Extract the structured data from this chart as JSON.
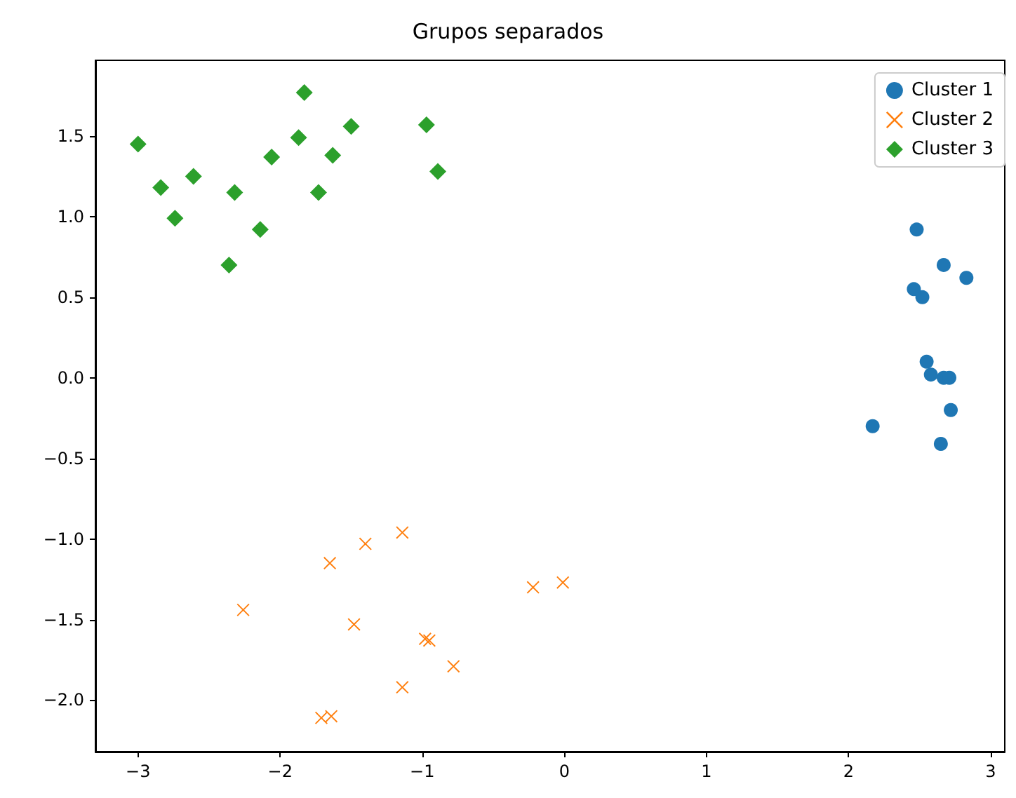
{
  "chart_data": {
    "type": "scatter",
    "title": "Grupos separados",
    "legend": "top right",
    "grid": false,
    "xlim": [
      -3.3,
      3.1
    ],
    "ylim": [
      -2.32,
      1.97
    ],
    "xticks": [
      {
        "value": -3,
        "label": "−3"
      },
      {
        "value": -2,
        "label": "−2"
      },
      {
        "value": -1,
        "label": "−1"
      },
      0,
      1,
      2,
      3
    ],
    "yticks": [
      {
        "value": -2,
        "label": "−2.0"
      },
      {
        "value": -1.5,
        "label": "−1.5"
      },
      {
        "value": -1,
        "label": "−1.0"
      },
      {
        "value": -0.5,
        "label": "−0.5"
      },
      {
        "value": 0,
        "label": "0.0"
      },
      {
        "value": 0.5,
        "label": "0.5"
      },
      {
        "value": 1,
        "label": "1.0"
      },
      {
        "value": 1.5,
        "label": "1.5"
      }
    ],
    "series": [
      {
        "name": "Cluster 1",
        "color": "#1f77b4",
        "marker": "circle",
        "x": [
          2.48,
          2.67,
          2.83,
          2.46,
          2.52,
          2.55,
          2.58,
          2.67,
          2.71,
          2.72,
          2.17,
          2.65
        ],
        "values": [
          0.92,
          0.7,
          0.62,
          0.55,
          0.5,
          0.1,
          0.02,
          0.0,
          0.0,
          -0.2,
          -0.3,
          -0.41
        ]
      },
      {
        "name": "Cluster 2",
        "color": "#ff7f0e",
        "marker": "cross",
        "x": [
          -2.26,
          -1.65,
          -1.4,
          -1.14,
          -1.48,
          -0.98,
          -0.95,
          -0.78,
          -1.14,
          -1.71,
          -1.64,
          -0.22,
          -0.01
        ],
        "values": [
          -1.44,
          -1.15,
          -1.03,
          -0.96,
          -1.53,
          -1.62,
          -1.63,
          -1.79,
          -1.92,
          -2.11,
          -2.1,
          -1.3,
          -1.27
        ]
      },
      {
        "name": "Cluster 3",
        "color": "#2ca02c",
        "marker": "diamond",
        "x": [
          -3.0,
          -2.84,
          -2.74,
          -2.61,
          -2.36,
          -2.32,
          -2.14,
          -2.06,
          -1.87,
          -1.83,
          -1.73,
          -1.63,
          -1.5,
          -0.97,
          -0.89
        ],
        "values": [
          1.45,
          1.18,
          0.99,
          1.25,
          0.7,
          1.15,
          0.92,
          1.37,
          1.49,
          1.77,
          1.15,
          1.38,
          1.56,
          1.57,
          1.28
        ]
      }
    ]
  }
}
